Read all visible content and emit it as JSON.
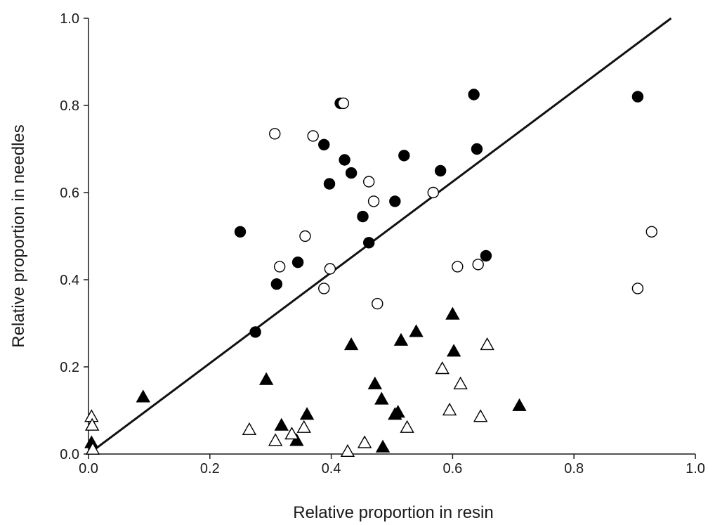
{
  "chart_data": {
    "type": "scatter",
    "xlabel": "Relative proportion in resin",
    "ylabel": "Relative proportion in needles",
    "xlim": [
      0.0,
      1.0
    ],
    "ylim": [
      0.0,
      1.0
    ],
    "xticks": [
      "0.0",
      "0.2",
      "0.4",
      "0.6",
      "0.8",
      "1.0"
    ],
    "yticks": [
      "0.0",
      "0.2",
      "0.4",
      "0.6",
      "0.8",
      "1.0"
    ],
    "grid": false,
    "reference_line": {
      "from": [
        0.0,
        0.0
      ],
      "to": [
        0.96,
        1.0
      ]
    },
    "series": [
      {
        "marker": "circle",
        "fill": "#000000",
        "points": [
          [
            0.25,
            0.51
          ],
          [
            0.275,
            0.28
          ],
          [
            0.31,
            0.39
          ],
          [
            0.345,
            0.44
          ],
          [
            0.388,
            0.71
          ],
          [
            0.397,
            0.62
          ],
          [
            0.415,
            0.805
          ],
          [
            0.422,
            0.675
          ],
          [
            0.433,
            0.645
          ],
          [
            0.452,
            0.545
          ],
          [
            0.462,
            0.485
          ],
          [
            0.505,
            0.58
          ],
          [
            0.52,
            0.685
          ],
          [
            0.58,
            0.65
          ],
          [
            0.635,
            0.825
          ],
          [
            0.64,
            0.7
          ],
          [
            0.655,
            0.455
          ],
          [
            0.905,
            0.82
          ]
        ]
      },
      {
        "marker": "circle",
        "fill": "#ffffff",
        "points": [
          [
            0.307,
            0.735
          ],
          [
            0.315,
            0.43
          ],
          [
            0.357,
            0.5
          ],
          [
            0.37,
            0.73
          ],
          [
            0.388,
            0.38
          ],
          [
            0.398,
            0.425
          ],
          [
            0.42,
            0.805
          ],
          [
            0.462,
            0.625
          ],
          [
            0.47,
            0.58
          ],
          [
            0.476,
            0.345
          ],
          [
            0.568,
            0.6
          ],
          [
            0.608,
            0.43
          ],
          [
            0.642,
            0.435
          ],
          [
            0.905,
            0.38
          ],
          [
            0.928,
            0.51
          ]
        ]
      },
      {
        "marker": "triangle",
        "fill": "#000000",
        "points": [
          [
            0.005,
            0.025
          ],
          [
            0.09,
            0.13
          ],
          [
            0.293,
            0.17
          ],
          [
            0.318,
            0.065
          ],
          [
            0.343,
            0.03
          ],
          [
            0.36,
            0.09
          ],
          [
            0.433,
            0.25
          ],
          [
            0.472,
            0.16
          ],
          [
            0.483,
            0.125
          ],
          [
            0.485,
            0.015
          ],
          [
            0.505,
            0.09
          ],
          [
            0.51,
            0.095
          ],
          [
            0.515,
            0.26
          ],
          [
            0.54,
            0.28
          ],
          [
            0.6,
            0.32
          ],
          [
            0.602,
            0.235
          ],
          [
            0.71,
            0.11
          ]
        ]
      },
      {
        "marker": "triangle",
        "fill": "#ffffff",
        "points": [
          [
            0.005,
            0.085
          ],
          [
            0.006,
            0.065
          ],
          [
            0.007,
            0.01
          ],
          [
            0.265,
            0.055
          ],
          [
            0.308,
            0.03
          ],
          [
            0.335,
            0.045
          ],
          [
            0.355,
            0.06
          ],
          [
            0.427,
            0.005
          ],
          [
            0.455,
            0.025
          ],
          [
            0.525,
            0.06
          ],
          [
            0.583,
            0.195
          ],
          [
            0.595,
            0.1
          ],
          [
            0.613,
            0.16
          ],
          [
            0.646,
            0.085
          ],
          [
            0.657,
            0.25
          ]
        ]
      }
    ]
  }
}
